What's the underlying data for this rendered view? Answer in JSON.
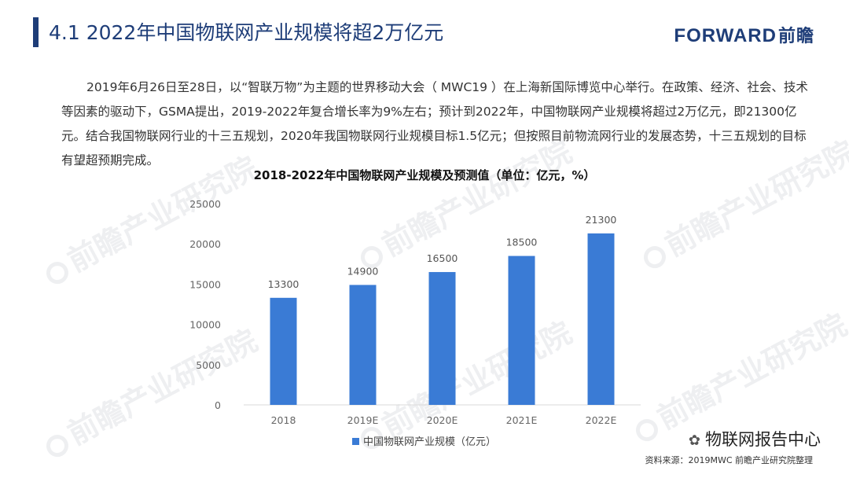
{
  "page": {
    "title": "4.1 2022年中国物联网产业规模将超2万亿元",
    "accent_color": "#1e3d78",
    "logo_en": "FORWARD",
    "logo_cn": "前瞻",
    "logo_color": "#1e3d78",
    "paragraph": "2019年6月26日至28日，以“智联万物”为主题的世界移动大会（  MWC19  ）在上海新国际博览中心举行。在政策、经济、社会、技术等因素的驱动下，GSMA提出，2019-2022年复合增长率为9%左右；预计到2022年，中国物联网产业规模将超过2万亿元，即21300亿元。结合我国物联网行业的十三五规划，2020年我国物联网行业规模目标1.5亿元；但按照目前物流网行业的发展态势，十三五规划的目标有望超预期完成。",
    "watermark_text": "前瞻产业研究院",
    "wechat_icon": "wechat-icon",
    "wechat_label": "物联网报告中心",
    "source": "资料来源：2019MWC 前瞻产业研究院整理"
  },
  "chart_data": {
    "type": "bar",
    "title": "2018-2022年中国物联网产业规模及预测值（单位：亿元，%）",
    "categories": [
      "2018",
      "2019E",
      "2020E",
      "2021E",
      "2022E"
    ],
    "series": [
      {
        "name": "中国物联网产业规模（亿元）",
        "values": [
          13300,
          14900,
          16500,
          18500,
          21300
        ],
        "color": "#3a7bd5"
      }
    ],
    "ylim": [
      0,
      25000
    ],
    "yticks": [
      "0",
      "5000",
      "10000",
      "15000",
      "20000",
      "25000"
    ],
    "data_labels": [
      "13300",
      "14900",
      "16500",
      "18500",
      "21300"
    ],
    "grid": false,
    "legend": "bottom"
  }
}
